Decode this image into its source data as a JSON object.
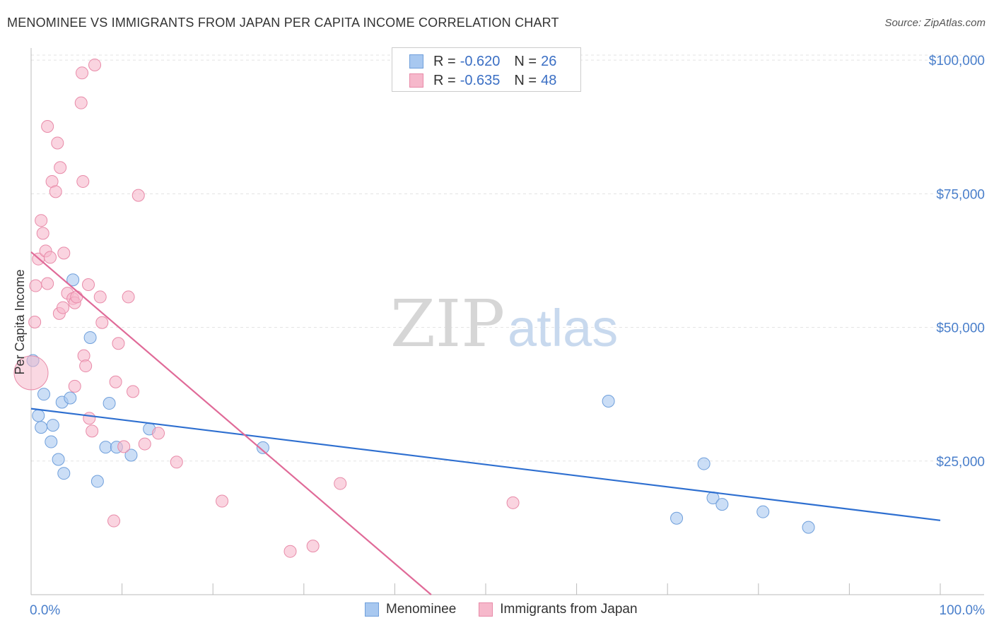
{
  "title": "MENOMINEE VS IMMIGRANTS FROM JAPAN PER CAPITA INCOME CORRELATION CHART",
  "source": "Source: ZipAtlas.com",
  "watermark": {
    "part1": "ZIP",
    "part2": "atlas"
  },
  "legend_stats": [
    {
      "r_label": "R = ",
      "r_value": "-0.620",
      "n_label": "N = ",
      "n_value": "26",
      "color": "#a8c8f0"
    },
    {
      "r_label": "R = ",
      "r_value": "-0.635",
      "n_label": "N = ",
      "n_value": "48",
      "color": "#f6b8cb"
    }
  ],
  "chart_data": {
    "type": "scatter",
    "title": "MENOMINEE VS IMMIGRANTS FROM JAPAN PER CAPITA INCOME CORRELATION CHART",
    "xlabel": "",
    "ylabel": "Per Capita Income",
    "xlim": [
      0,
      100
    ],
    "ylim": [
      0,
      102000
    ],
    "x_tick_labels": [
      "0.0%",
      "100.0%"
    ],
    "y_ticks": [
      25000,
      50000,
      75000,
      100000
    ],
    "y_tick_labels": [
      "$25,000",
      "$50,000",
      "$75,000",
      "$100,000"
    ],
    "grid": true,
    "legend_position": "bottom",
    "series": [
      {
        "name": "Menominee",
        "color": "#a8c8f0",
        "stroke": "#6f9fdb",
        "line_color": "#2e6fd0",
        "trend": {
          "x": [
            0,
            100
          ],
          "y": [
            34800,
            13900
          ]
        },
        "points": [
          [
            0.2,
            43800
          ],
          [
            1.4,
            37500
          ],
          [
            0.8,
            33500
          ],
          [
            1.1,
            31300
          ],
          [
            2.4,
            31700
          ],
          [
            2.2,
            28600
          ],
          [
            3.0,
            25300
          ],
          [
            3.6,
            22700
          ],
          [
            3.4,
            36000
          ],
          [
            4.3,
            36800
          ],
          [
            4.6,
            58900
          ],
          [
            6.5,
            48100
          ],
          [
            7.3,
            21200
          ],
          [
            8.2,
            27600
          ],
          [
            8.6,
            35800
          ],
          [
            9.4,
            27600
          ],
          [
            11.0,
            26100
          ],
          [
            13.0,
            31000
          ],
          [
            25.5,
            27500
          ],
          [
            63.5,
            36200
          ],
          [
            74.0,
            24500
          ],
          [
            75.0,
            18100
          ],
          [
            76.0,
            16900
          ],
          [
            71.0,
            14300
          ],
          [
            80.5,
            15500
          ],
          [
            85.5,
            12600
          ]
        ]
      },
      {
        "name": "Immigrants from Japan",
        "color": "#f6b8cb",
        "stroke": "#e88aa8",
        "line_color": "#e06a98",
        "trend": {
          "x": [
            0,
            44
          ],
          "y": [
            64100,
            0
          ]
        },
        "points": [
          [
            0.0,
            41500
          ],
          [
            0.4,
            51000
          ],
          [
            0.5,
            57800
          ],
          [
            0.8,
            62800
          ],
          [
            1.1,
            70000
          ],
          [
            1.3,
            67600
          ],
          [
            1.6,
            64300
          ],
          [
            1.8,
            58200
          ],
          [
            2.1,
            63100
          ],
          [
            1.8,
            87600
          ],
          [
            2.3,
            77300
          ],
          [
            2.7,
            75400
          ],
          [
            2.9,
            84500
          ],
          [
            3.1,
            52600
          ],
          [
            3.2,
            79900
          ],
          [
            3.5,
            53700
          ],
          [
            3.6,
            63900
          ],
          [
            4.0,
            56400
          ],
          [
            4.6,
            55400
          ],
          [
            4.8,
            39000
          ],
          [
            4.8,
            54600
          ],
          [
            5.0,
            55700
          ],
          [
            5.5,
            92000
          ],
          [
            5.6,
            97600
          ],
          [
            5.7,
            77300
          ],
          [
            5.8,
            44700
          ],
          [
            6.0,
            42800
          ],
          [
            6.3,
            58000
          ],
          [
            6.4,
            33000
          ],
          [
            6.7,
            30600
          ],
          [
            7.0,
            99100
          ],
          [
            7.6,
            55700
          ],
          [
            7.8,
            50900
          ],
          [
            9.1,
            13800
          ],
          [
            9.3,
            39800
          ],
          [
            9.6,
            47000
          ],
          [
            10.2,
            27700
          ],
          [
            10.7,
            55700
          ],
          [
            11.2,
            38000
          ],
          [
            11.8,
            74700
          ],
          [
            12.5,
            28200
          ],
          [
            14.0,
            30200
          ],
          [
            16.0,
            24800
          ],
          [
            21.0,
            17500
          ],
          [
            28.5,
            8100
          ],
          [
            31.0,
            9100
          ],
          [
            34.0,
            20800
          ],
          [
            53.0,
            17200
          ]
        ]
      }
    ]
  }
}
